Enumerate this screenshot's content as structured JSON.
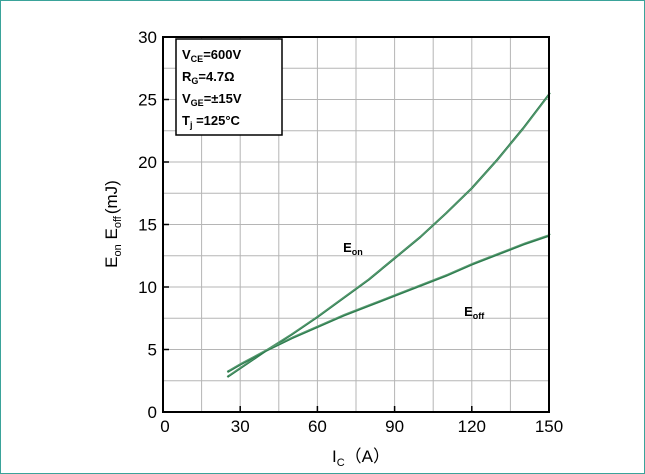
{
  "chart_data": {
    "type": "line",
    "xaxis": {
      "label_main": "I",
      "label_sub": "C",
      "label_unit": "（A）",
      "range": [
        0,
        150
      ],
      "ticks": [
        0,
        30,
        60,
        90,
        120,
        150
      ],
      "grid_step": 15
    },
    "yaxis": {
      "label_e1": "E",
      "label_sub1": "on",
      "label_e2": " E",
      "label_sub2": "off",
      "label_unit": "(mJ)",
      "range": [
        0,
        30
      ],
      "ticks": [
        0,
        5,
        10,
        15,
        20,
        25,
        30
      ],
      "grid_step": 2.5
    },
    "grid": true,
    "legend_box": {
      "placement": "top-left",
      "lines": [
        {
          "main": "V",
          "sub": "CE",
          "rest": "=600V"
        },
        {
          "main": "R",
          "sub": "G",
          "rest": "=4.7Ω"
        },
        {
          "main": "V",
          "sub": "GE",
          "rest": "=±15V"
        },
        {
          "main": "T",
          "sub": "j",
          "rest": " =125°C"
        }
      ]
    },
    "series": [
      {
        "name_main": "E",
        "name_sub": "on",
        "color": "#2e7d4f",
        "label_at": [
          70,
          12.8
        ],
        "x": [
          25,
          30,
          40,
          50,
          60,
          70,
          80,
          90,
          100,
          110,
          120,
          130,
          140,
          150
        ],
        "y": [
          2.8,
          3.5,
          4.9,
          6.2,
          7.6,
          9.1,
          10.6,
          12.3,
          14.0,
          15.9,
          17.9,
          20.2,
          22.7,
          25.4
        ]
      },
      {
        "name_main": "E",
        "name_sub": "off",
        "color": "#2e7d4f",
        "label_at": [
          117,
          7.7
        ],
        "x": [
          25,
          30,
          40,
          50,
          60,
          70,
          80,
          90,
          100,
          110,
          120,
          130,
          140,
          150
        ],
        "y": [
          3.2,
          3.8,
          4.9,
          5.9,
          6.8,
          7.7,
          8.5,
          9.3,
          10.1,
          10.9,
          11.8,
          12.6,
          13.4,
          14.1
        ]
      }
    ]
  }
}
